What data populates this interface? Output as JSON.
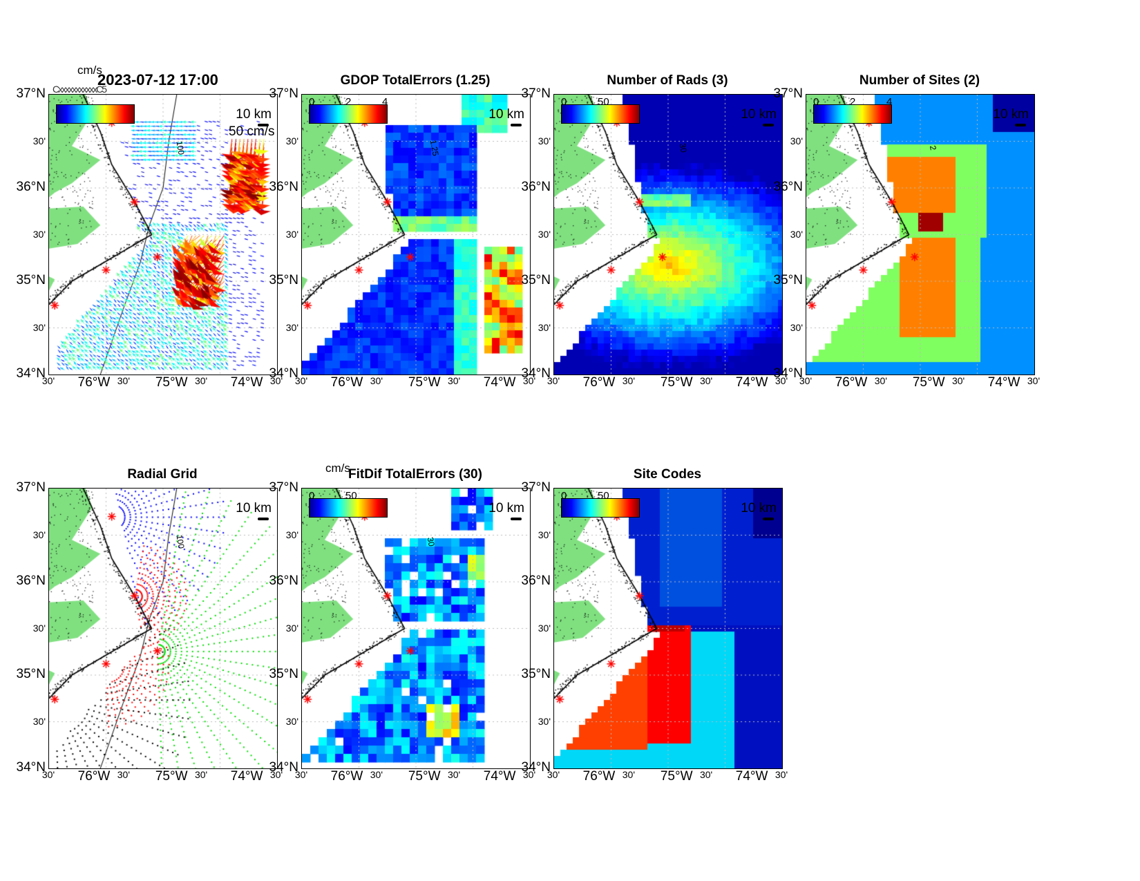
{
  "timestamp": "2023-07-12 17:00",
  "axes": {
    "lat_major": [
      "37°N",
      "36°N",
      "35°N",
      "34°N"
    ],
    "lat_minor": [
      "30'",
      "30'",
      "30'"
    ],
    "lon_major": [
      "76°W",
      "75°W",
      "74°W"
    ],
    "lon_minor": [
      "30'",
      "30'",
      "30'",
      "30'"
    ]
  },
  "panels": {
    "vectors": {
      "cb_units": "cm/s",
      "ref_vector": "50 cm/s",
      "scale": "10 km",
      "contour": "100",
      "overlap": "CxxxxxxxxxxxC5"
    },
    "gdop": {
      "title": "GDOP TotalErrors (1.25)",
      "cb_ticks": [
        "0",
        "2",
        "4"
      ],
      "scale": "10 km",
      "contour": "1.25"
    },
    "rads": {
      "title": "Number of Rads (3)",
      "cb_ticks": [
        "0",
        "50"
      ],
      "scale": "10 km",
      "contour": "30"
    },
    "sites": {
      "title": "Number of Sites (2)",
      "cb_ticks": [
        "0",
        "2",
        "4"
      ],
      "scale": "10 km",
      "contour": "2"
    },
    "radial": {
      "title": "Radial Grid",
      "scale": "10 km",
      "contour": "100"
    },
    "fitdif": {
      "title": "FitDif TotalErrors (30)",
      "cb_units": "cm/s",
      "cb_ticks": [
        "0",
        "50"
      ],
      "scale": "10 km",
      "contour": "30"
    },
    "codes": {
      "title": "Site Codes",
      "cb_ticks": [
        "0",
        "50"
      ],
      "scale": "10 km"
    }
  },
  "colors": {
    "land": "#80e080",
    "site_marker": "#ff0000"
  }
}
